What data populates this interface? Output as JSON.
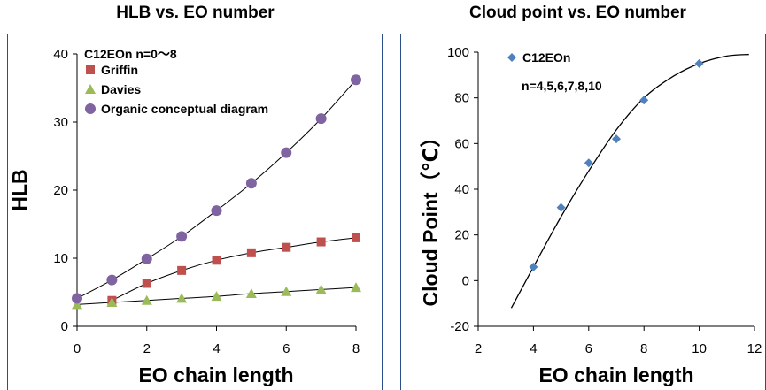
{
  "chart_data": [
    {
      "type": "scatter",
      "title": "HLB vs. EO number",
      "annotation": "C12EOn  n=0～8",
      "xlabel": "EO chain length",
      "ylabel": "HLB",
      "xlim": [
        0,
        8
      ],
      "ylim": [
        0,
        40
      ],
      "xticks": [
        0,
        2,
        4,
        6,
        8
      ],
      "yticks": [
        0,
        10,
        20,
        30,
        40
      ],
      "grid": false,
      "legend_position": "top-left",
      "series": [
        {
          "name": "Griffin",
          "marker": "square",
          "color": "#c0504d",
          "x": [
            1,
            2,
            3,
            4,
            5,
            6,
            7,
            8
          ],
          "y": [
            3.8,
            6.3,
            8.2,
            9.7,
            10.8,
            11.6,
            12.4,
            13.0
          ]
        },
        {
          "name": "Davies",
          "marker": "triangle",
          "color": "#9bbb59",
          "x": [
            0,
            1,
            2,
            3,
            4,
            5,
            6,
            7,
            8
          ],
          "y": [
            3.2,
            3.5,
            3.8,
            4.1,
            4.4,
            4.8,
            5.1,
            5.4,
            5.7
          ]
        },
        {
          "name": "Organic conceptual  diagram",
          "marker": "circle",
          "color": "#8064a2",
          "x": [
            0,
            1,
            2,
            3,
            4,
            5,
            6,
            7,
            8
          ],
          "y": [
            4.1,
            6.8,
            9.9,
            13.2,
            17.0,
            21.0,
            25.5,
            30.5,
            36.2
          ]
        }
      ]
    },
    {
      "type": "scatter",
      "title": "Cloud point vs. EO number",
      "annotation": "n=4,5,6,7,8,10",
      "xlabel": "EO chain length",
      "ylabel": "Cloud Point（℃）",
      "xlim": [
        2,
        12
      ],
      "ylim": [
        -20,
        100
      ],
      "xticks": [
        2,
        4,
        6,
        8,
        10,
        12
      ],
      "yticks": [
        -20,
        0,
        20,
        40,
        60,
        80,
        100
      ],
      "grid": false,
      "legend_position": "top-left",
      "series": [
        {
          "name": "C12EOn",
          "marker": "diamond",
          "color": "#4f81bd",
          "x": [
            4,
            5,
            6,
            7,
            8,
            10
          ],
          "y": [
            6,
            32,
            51.5,
            62,
            79,
            95
          ]
        }
      ],
      "fit_curve": {
        "x": [
          3.2,
          4,
          5,
          6,
          7,
          8,
          9,
          10,
          11,
          11.8
        ],
        "y": [
          -12,
          6,
          28,
          48,
          66,
          80,
          89,
          95,
          98.3,
          99
        ]
      }
    }
  ],
  "colors": {
    "axis": "#000000",
    "frame": "#2b4e8c",
    "trendline": "#000000"
  }
}
